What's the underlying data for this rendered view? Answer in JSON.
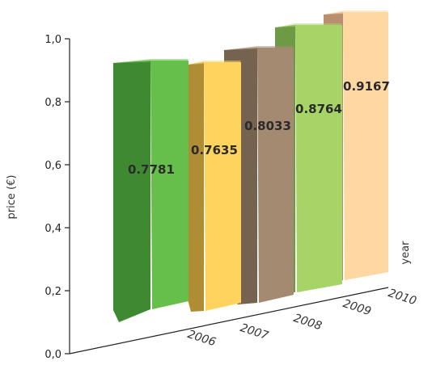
{
  "chart_data": {
    "type": "bar",
    "categories": [
      "2006",
      "2007",
      "2008",
      "2009",
      "2010"
    ],
    "values": [
      0.7781,
      0.7635,
      0.8033,
      0.8764,
      0.9167
    ],
    "value_labels": [
      "0.7781",
      "0.7635",
      "0.8033",
      "0.8764",
      "0.9167"
    ],
    "ylabel": "price (€)",
    "xlabel": "year",
    "ylim": [
      0,
      1.0
    ],
    "yticks": [
      "0,0",
      "0,2",
      "0,4",
      "0,6",
      "0,8",
      "1,0"
    ],
    "grid": false,
    "style": "3d",
    "colors": [
      {
        "front": "#66bf4a",
        "side": "#3f8a30"
      },
      {
        "front": "#ffd45e",
        "side": "#b08c35"
      },
      {
        "front": "#a58a72",
        "side": "#75624f"
      },
      {
        "front": "#a6d466",
        "side": "#6e9a45"
      },
      {
        "front": "#ffd7a3",
        "side": "#b89070"
      }
    ]
  }
}
